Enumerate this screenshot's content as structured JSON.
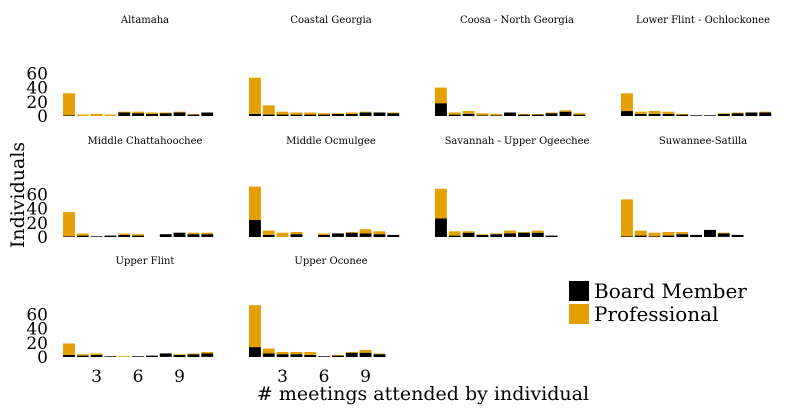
{
  "chart_data": {
    "type": "bar",
    "stacked": true,
    "xlabel": "# meetings attended by individual",
    "ylabel": "Individuals",
    "x": [
      1,
      2,
      3,
      4,
      5,
      6,
      7,
      8,
      9,
      10,
      11,
      12
    ],
    "x_ticks": [
      3,
      6,
      9
    ],
    "y_ticks": [
      0,
      20,
      40,
      60
    ],
    "ylim": [
      0,
      75
    ],
    "grid": false,
    "legend_position": "bottom-right",
    "series_names": [
      "Board Member",
      "Professional"
    ],
    "colors": {
      "board": "#000000",
      "professional": "#E69F00"
    },
    "panels": [
      {
        "title": "Altamaha",
        "board": [
          1,
          0,
          0,
          0,
          5,
          4,
          3,
          4,
          5,
          2,
          5,
          0
        ],
        "professional": [
          31,
          2,
          3,
          2,
          1,
          2,
          2,
          1,
          1,
          1,
          0,
          0
        ]
      },
      {
        "title": "Coastal Georgia",
        "board": [
          3,
          2,
          2,
          2,
          2,
          2,
          3,
          3,
          5,
          5,
          4,
          0
        ],
        "professional": [
          51,
          13,
          4,
          3,
          3,
          2,
          1,
          2,
          1,
          0,
          1,
          0
        ]
      },
      {
        "title": "Coosa - North Georgia",
        "board": [
          18,
          2,
          3,
          1,
          1,
          5,
          2,
          2,
          4,
          6,
          2,
          0
        ],
        "professional": [
          22,
          3,
          4,
          3,
          2,
          0,
          1,
          1,
          1,
          2,
          2,
          0
        ]
      },
      {
        "title": "Lower Flint - Ochlockonee",
        "board": [
          7,
          3,
          3,
          3,
          2,
          1,
          1,
          3,
          4,
          5,
          5,
          0
        ],
        "professional": [
          25,
          3,
          4,
          3,
          1,
          0,
          0,
          1,
          1,
          0,
          1,
          0
        ]
      },
      {
        "title": "Middle Chattahoochee",
        "board": [
          1,
          2,
          1,
          2,
          3,
          2,
          0,
          4,
          6,
          4,
          4,
          0
        ],
        "professional": [
          34,
          3,
          0,
          0,
          2,
          2,
          0,
          0,
          0,
          2,
          2,
          0
        ]
      },
      {
        "title": "Middle Ocmulgee",
        "board": [
          24,
          3,
          0,
          4,
          0,
          3,
          5,
          6,
          5,
          4,
          3,
          0
        ],
        "professional": [
          47,
          6,
          6,
          3,
          0,
          2,
          0,
          1,
          6,
          4,
          0,
          0
        ]
      },
      {
        "title": "Savannah - Upper Ogeechee",
        "board": [
          26,
          2,
          6,
          3,
          4,
          5,
          6,
          6,
          2,
          0,
          0,
          0
        ],
        "professional": [
          42,
          6,
          2,
          1,
          1,
          4,
          1,
          3,
          0,
          0,
          0,
          0
        ]
      },
      {
        "title": "Suwannee-Satilla",
        "board": [
          1,
          2,
          1,
          2,
          4,
          3,
          10,
          5,
          3,
          0,
          0,
          0
        ],
        "professional": [
          52,
          7,
          5,
          5,
          3,
          0,
          0,
          1,
          0,
          0,
          0,
          0
        ]
      },
      {
        "title": "Upper Flint",
        "board": [
          3,
          2,
          3,
          1,
          0,
          1,
          2,
          5,
          3,
          4,
          5,
          0
        ],
        "professional": [
          16,
          2,
          2,
          0,
          1,
          0,
          0,
          0,
          1,
          1,
          2,
          0
        ]
      },
      {
        "title": "Upper Oconee",
        "board": [
          14,
          5,
          4,
          4,
          3,
          1,
          2,
          6,
          6,
          4,
          0,
          0
        ],
        "professional": [
          59,
          7,
          3,
          3,
          4,
          0,
          1,
          1,
          4,
          1,
          0,
          0
        ]
      }
    ]
  }
}
